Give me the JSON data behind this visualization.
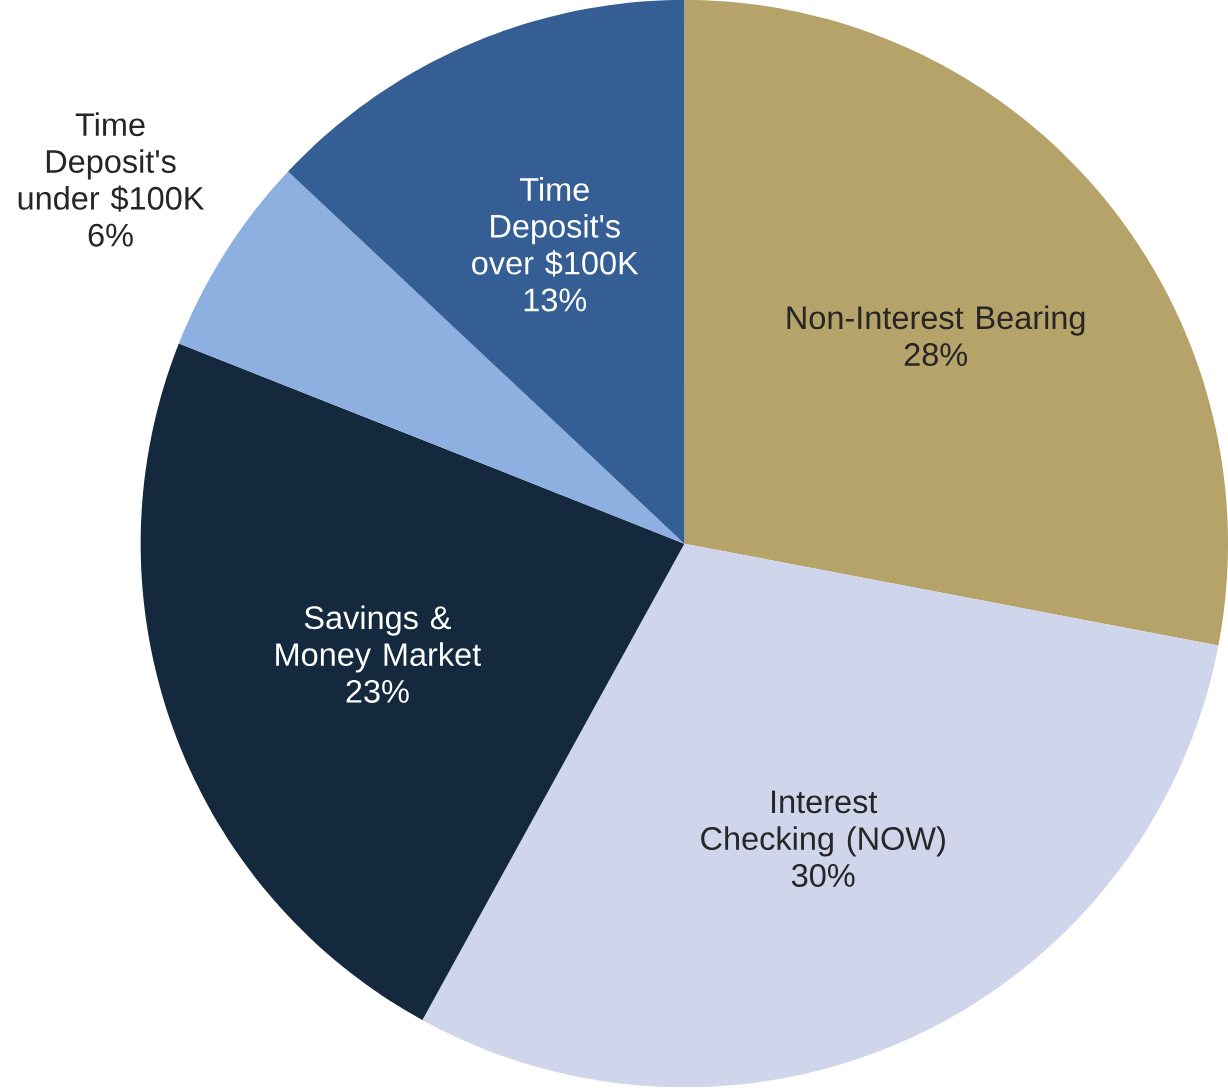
{
  "chart_data": {
    "type": "pie",
    "categories": [
      "Non-Interest Bearing",
      "Interest Checking (NOW)",
      "Savings & Money Market",
      "Time Deposit's under $100K",
      "Time Deposit's over $100K"
    ],
    "values": [
      28,
      30,
      23,
      6,
      13
    ],
    "value_labels": [
      "28%",
      "30%",
      "23%",
      "6%",
      "13%"
    ],
    "colors": [
      "#b5a36a",
      "#cfd5ea",
      "#14293d",
      "#8db0e0",
      "#355f94"
    ]
  }
}
